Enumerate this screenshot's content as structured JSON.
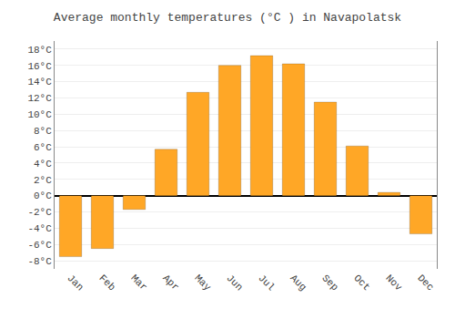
{
  "chart_data": {
    "type": "bar",
    "title": "Average monthly temperatures (°C ) in Navapolatsk",
    "categories": [
      "Jan",
      "Feb",
      "Mar",
      "Apr",
      "May",
      "Jun",
      "Jul",
      "Aug",
      "Sep",
      "Oct",
      "Nov",
      "Dec"
    ],
    "values": [
      -7.5,
      -6.5,
      -1.7,
      5.7,
      12.7,
      16.0,
      17.2,
      16.2,
      11.5,
      6.1,
      0.4,
      -4.7
    ],
    "color": "#FFA726",
    "ylim": [
      -9,
      19
    ],
    "yticks": [
      {
        "value": -8,
        "label": "-8°C"
      },
      {
        "value": -6,
        "label": "-6°C"
      },
      {
        "value": -4,
        "label": "-4°C"
      },
      {
        "value": -2,
        "label": "-2°C"
      },
      {
        "value": 0,
        "label": "0°C"
      },
      {
        "value": 2,
        "label": "2°C"
      },
      {
        "value": 4,
        "label": "4°C"
      },
      {
        "value": 6,
        "label": "6°C"
      },
      {
        "value": 8,
        "label": "8°C"
      },
      {
        "value": 10,
        "label": "10°C"
      },
      {
        "value": 12,
        "label": "12°C"
      },
      {
        "value": 14,
        "label": "14°C"
      },
      {
        "value": 16,
        "label": "16°C"
      },
      {
        "value": 18,
        "label": "18°C"
      }
    ],
    "grid": true
  }
}
